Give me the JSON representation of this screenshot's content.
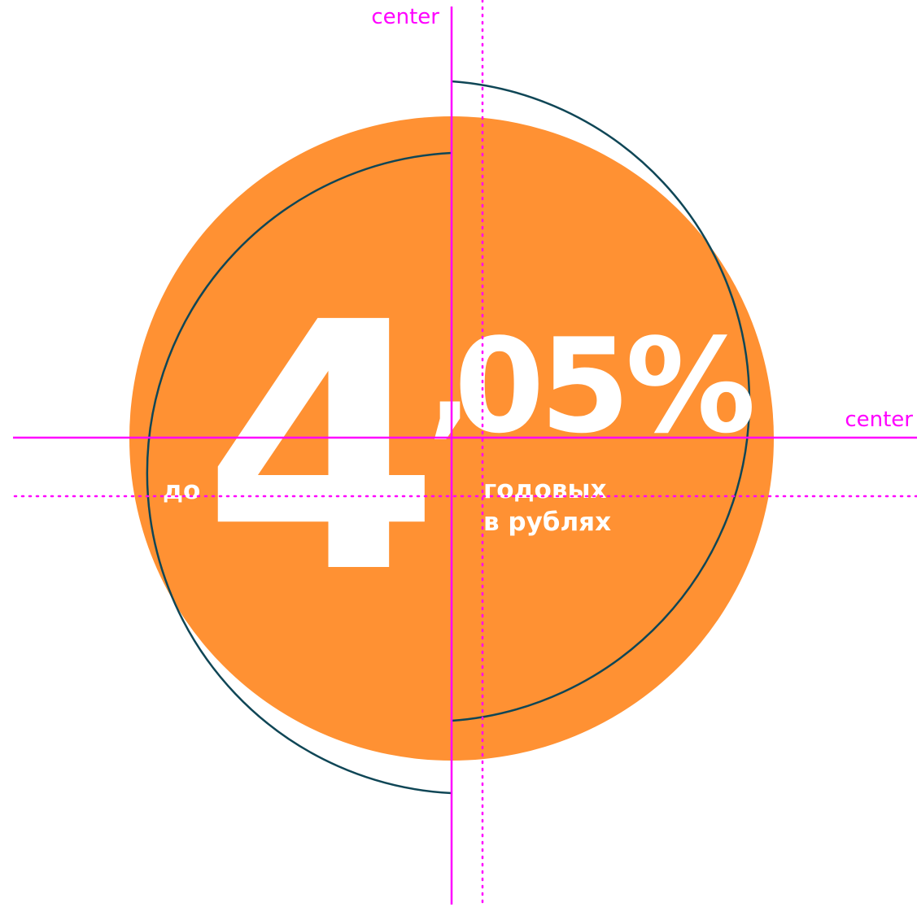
{
  "colors": {
    "accent": "#FF9133",
    "ring": "#0F4656",
    "guide": "#FF00FF",
    "text_on_accent": "#FFFFFF"
  },
  "guides": {
    "vertical_label": "center",
    "horizontal_label": "center"
  },
  "rate": {
    "prefix": "до",
    "integer": "4",
    "separator": ",",
    "fraction": "05%",
    "caption_line1": "годовых",
    "caption_line2": "в рублях"
  }
}
